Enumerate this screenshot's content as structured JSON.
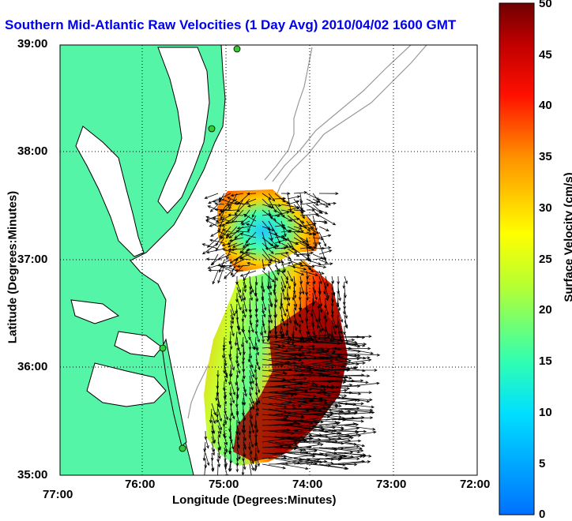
{
  "title": "Southern Mid-Atlantic Raw Velocities (1 Day Avg) 2010/04/02 1600 GMT",
  "axes": {
    "xlabel": "Longitude (Degrees:Minutes)",
    "ylabel": "Latitude (Degrees:Minutes)",
    "xticks": [
      "77:00",
      "76:00",
      "75:00",
      "74:00",
      "73:00",
      "72:00"
    ],
    "yticks": [
      "39:00",
      "38:00",
      "37:00",
      "36:00",
      "35:00"
    ]
  },
  "colorbar": {
    "label": "Surface Velocity (cm/s)",
    "ticks": [
      "50",
      "45",
      "40",
      "35",
      "30",
      "25",
      "20",
      "15",
      "10",
      "5",
      "0"
    ],
    "min": 0,
    "max": 50
  },
  "colors": {
    "land": "#55f5a8",
    "coast": "#000000",
    "bathymetry": "#999999",
    "title": "#0000ee",
    "site_marker": "#33cc33"
  }
}
